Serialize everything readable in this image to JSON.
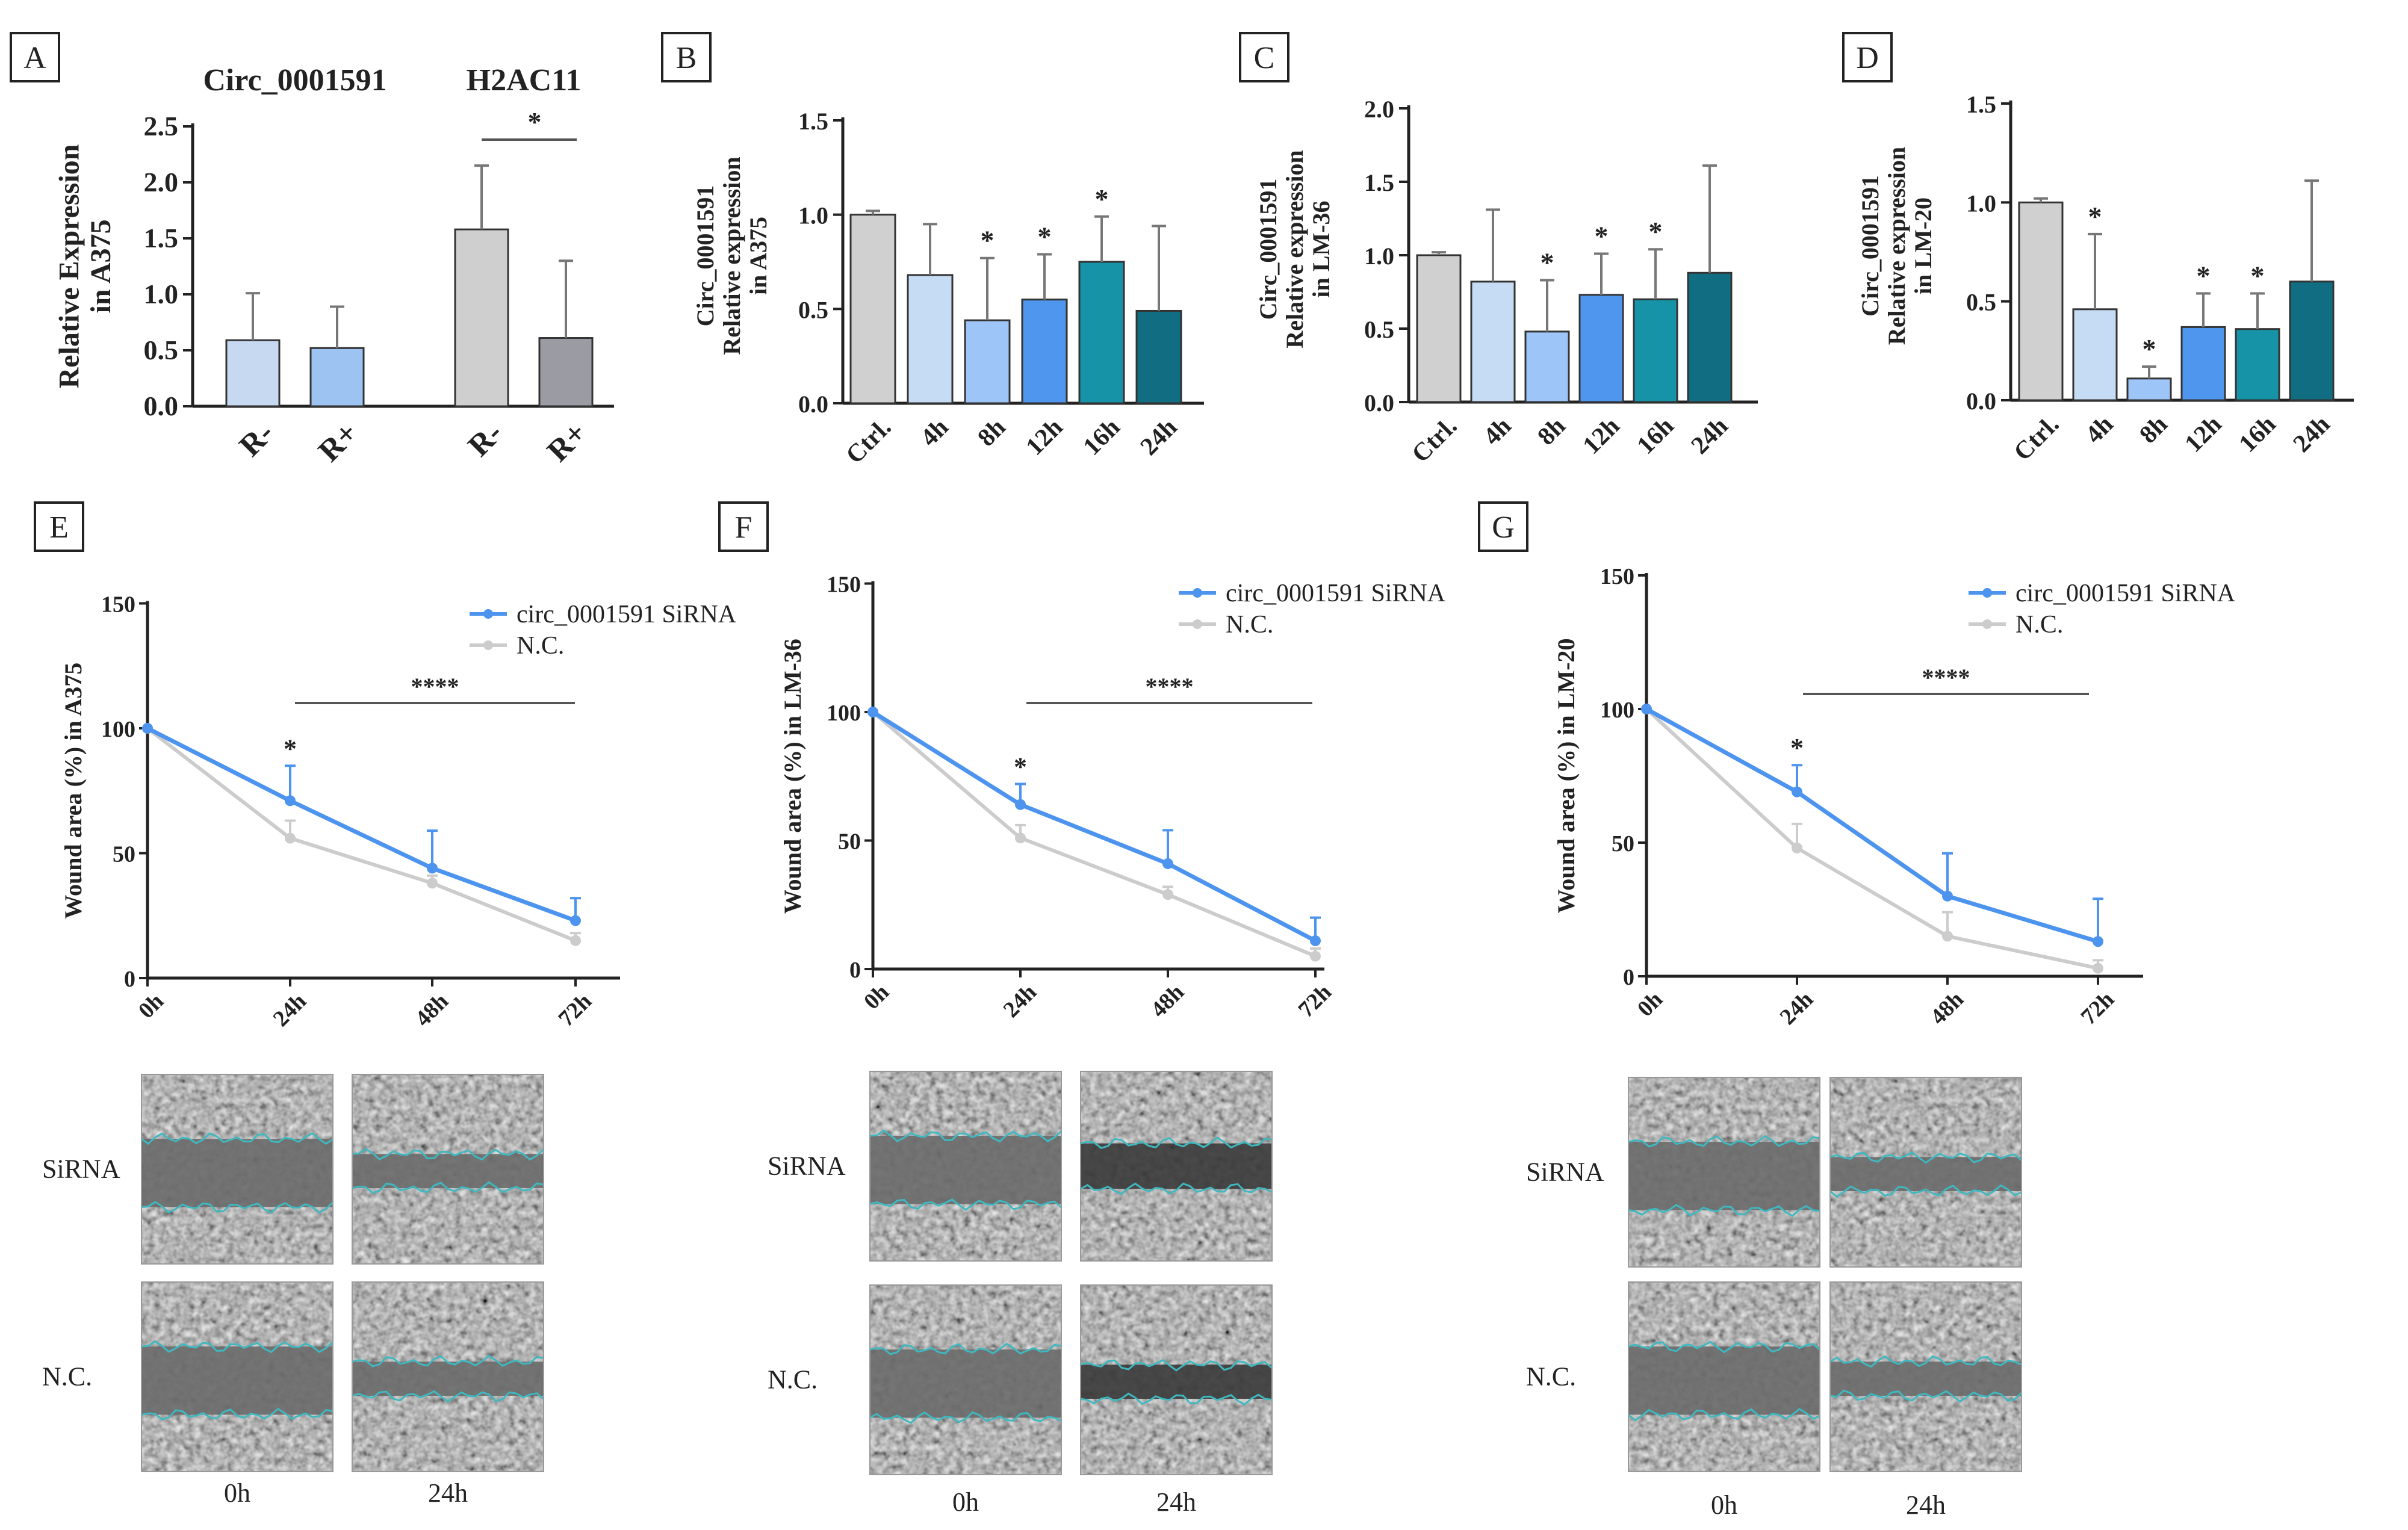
{
  "chart_data": [
    {
      "panel": "A",
      "type": "bar",
      "group_labels": [
        "Circ_0001591",
        "H2AC11"
      ],
      "categories": [
        "R-",
        "R+",
        "R-",
        "R+"
      ],
      "values": [
        0.59,
        0.52,
        1.58,
        0.61
      ],
      "errors": [
        0.42,
        0.37,
        0.57,
        0.69
      ],
      "colors": [
        "#c6d9f1",
        "#9dc3f2",
        "#cfcfcf",
        "#9b9ba3"
      ],
      "ylabel": "Relative Expression\nin A375",
      "ylim": [
        0,
        2.5
      ],
      "yticks": [
        "0.0",
        "0.5",
        "1.0",
        "1.5",
        "2.0",
        "2.5"
      ],
      "significance": [
        {
          "text": "*"
        }
      ]
    },
    {
      "panel": "B",
      "type": "bar",
      "categories": [
        "Ctrl.",
        "4h",
        "8h",
        "12h",
        "16h",
        "24h"
      ],
      "values": [
        1.0,
        0.68,
        0.44,
        0.55,
        0.75,
        0.49
      ],
      "errors": [
        0.02,
        0.27,
        0.33,
        0.24,
        0.24,
        0.45
      ],
      "stars": [
        "",
        "",
        "*",
        "*",
        "*",
        ""
      ],
      "colors": [
        "#d0d0d0",
        "#c6dcf5",
        "#9ec5f7",
        "#4f96ef",
        "#1793a8",
        "#106d82"
      ],
      "ylabel": "Circ_0001591\nRelative expression\nin A375",
      "ylim": [
        0,
        1.5
      ],
      "yticks": [
        "0.0",
        "0.5",
        "1.0",
        "1.5"
      ]
    },
    {
      "panel": "C",
      "type": "bar",
      "categories": [
        "Ctrl.",
        "4h",
        "8h",
        "12h",
        "16h",
        "24h"
      ],
      "values": [
        1.0,
        0.82,
        0.48,
        0.73,
        0.7,
        0.88
      ],
      "errors": [
        0.02,
        0.49,
        0.35,
        0.28,
        0.34,
        0.73
      ],
      "stars": [
        "",
        "",
        "*",
        "*",
        "*",
        ""
      ],
      "colors": [
        "#d0d0d0",
        "#c6dcf5",
        "#9ec5f7",
        "#4f96ef",
        "#1793a8",
        "#106d82"
      ],
      "ylabel": "Circ_0001591\nRelative expression\nin LM-36",
      "ylim": [
        0,
        2.0
      ],
      "yticks": [
        "0.0",
        "0.5",
        "1.0",
        "1.5",
        "2.0"
      ]
    },
    {
      "panel": "D",
      "type": "bar",
      "categories": [
        "Ctrl.",
        "4h",
        "8h",
        "12h",
        "16h",
        "24h"
      ],
      "values": [
        1.0,
        0.46,
        0.11,
        0.37,
        0.36,
        0.6
      ],
      "errors": [
        0.02,
        0.38,
        0.06,
        0.17,
        0.18,
        0.51
      ],
      "stars": [
        "",
        "*",
        "*",
        "*",
        "*",
        ""
      ],
      "colors": [
        "#d0d0d0",
        "#c6dcf5",
        "#9ec5f7",
        "#4f96ef",
        "#1793a8",
        "#106d82"
      ],
      "ylabel": "Circ_0001591\nRelative expression\nin LM-20",
      "ylim": [
        0,
        1.5
      ],
      "yticks": [
        "0.0",
        "0.5",
        "1.0",
        "1.5"
      ]
    },
    {
      "panel": "E",
      "type": "line",
      "x": [
        "0h",
        "24h",
        "48h",
        "72h"
      ],
      "series": [
        {
          "name": "circ_0001591 SiRNA",
          "values": [
            100,
            71,
            44,
            23
          ],
          "errors": [
            0,
            14,
            15,
            9
          ],
          "color": "#4d94ef"
        },
        {
          "name": "N.C.",
          "values": [
            100,
            56,
            38,
            15
          ],
          "errors": [
            0,
            7,
            3,
            3
          ],
          "color": "#cccccc"
        }
      ],
      "ylabel": "Wound area (%) in A375",
      "ylim": [
        0,
        150
      ],
      "yticks": [
        "0",
        "50",
        "100",
        "150"
      ],
      "point_star": "*",
      "bracket_star": "****"
    },
    {
      "panel": "F",
      "type": "line",
      "x": [
        "0h",
        "24h",
        "48h",
        "72h"
      ],
      "series": [
        {
          "name": "circ_0001591 SiRNA",
          "values": [
            100,
            64,
            41,
            11
          ],
          "errors": [
            0,
            8,
            13,
            9
          ],
          "color": "#4d94ef"
        },
        {
          "name": "N.C.",
          "values": [
            100,
            51,
            29,
            5
          ],
          "errors": [
            0,
            5,
            3,
            3
          ],
          "color": "#cccccc"
        }
      ],
      "ylabel": "Wound area (%) in LM-36",
      "ylim": [
        0,
        150
      ],
      "yticks": [
        "0",
        "50",
        "100",
        "150"
      ],
      "point_star": "*",
      "bracket_star": "****"
    },
    {
      "panel": "G",
      "type": "line",
      "x": [
        "0h",
        "24h",
        "48h",
        "72h"
      ],
      "series": [
        {
          "name": "circ_0001591 SiRNA",
          "values": [
            100,
            69,
            30,
            13
          ],
          "errors": [
            0,
            10,
            16,
            16
          ],
          "color": "#4d94ef"
        },
        {
          "name": "N.C.",
          "values": [
            100,
            48,
            15,
            3
          ],
          "errors": [
            0,
            9,
            9,
            3
          ],
          "color": "#cccccc"
        }
      ],
      "ylabel": "Wound area (%) in LM-20",
      "ylim": [
        0,
        150
      ],
      "yticks": [
        "0",
        "50",
        "100",
        "150"
      ],
      "point_star": "*",
      "bracket_star": "****"
    }
  ],
  "micrographs": {
    "row_labels": [
      "SiRNA",
      "N.C."
    ],
    "col_labels": [
      "0h",
      "24h"
    ],
    "outline_color": "#3fb8c0"
  }
}
